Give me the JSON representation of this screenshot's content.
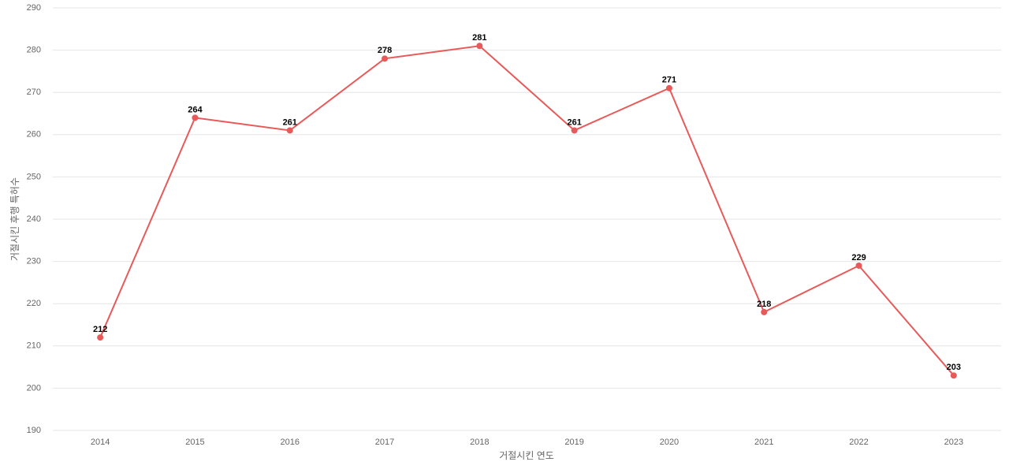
{
  "chart_data": {
    "type": "line",
    "x_label": "거절시킨 연도",
    "y_label": "거절시킨 후행 특허수",
    "categories": [
      "2014",
      "2015",
      "2016",
      "2017",
      "2018",
      "2019",
      "2020",
      "2021",
      "2022",
      "2023"
    ],
    "series": [
      {
        "name": "거절시킨 후행 특허수",
        "color": "#e85a5a",
        "values": [
          212,
          264,
          261,
          278,
          281,
          261,
          271,
          218,
          229,
          203
        ]
      }
    ],
    "ylim": [
      190,
      290
    ],
    "yticks": [
      190,
      200,
      210,
      220,
      230,
      240,
      250,
      260,
      270,
      280,
      290
    ],
    "grid": true
  }
}
